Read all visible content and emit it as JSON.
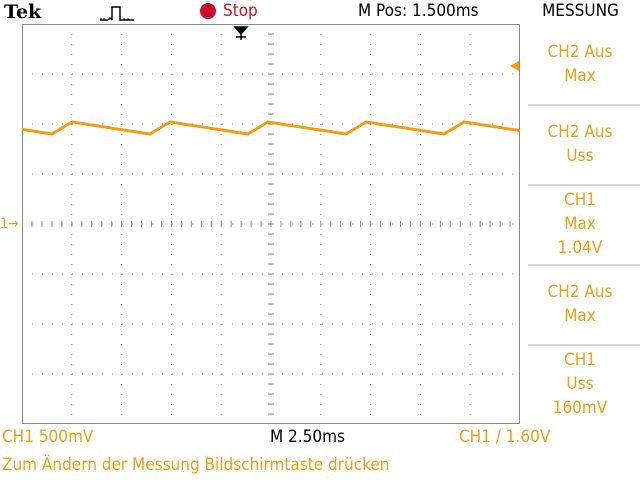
{
  "header": {
    "brand": "Tek",
    "trigger_state": "Stop",
    "horizontal_position": "M Pos: 1.500ms",
    "menu_title": "MESSUNG"
  },
  "measurements": [
    {
      "lines": [
        "CH2 Aus",
        "Max"
      ]
    },
    {
      "lines": [
        "CH2 Aus",
        "Uss"
      ]
    },
    {
      "lines": [
        "CH1",
        "Max",
        "1.04V"
      ]
    },
    {
      "lines": [
        "CH2 Aus",
        "Max"
      ]
    },
    {
      "lines": [
        "CH1",
        "Uss",
        "160mV"
      ]
    }
  ],
  "footer": {
    "ch1_scale": "CH1  500mV",
    "timebase": "M 2.50ms",
    "trigger_readout": "CH1 ∕ 1.60V",
    "help": "Zum Ändern der Messung Bildschirmtaste drücken"
  },
  "markers": {
    "ch1_ground": "1→"
  },
  "colors": {
    "trace": "#f39c12",
    "stop": "#c8102e",
    "grid": "#8a8a8a"
  },
  "icons": {
    "trigger_pulse": "pulse-icon",
    "trigger_position": "down-arrow-icon",
    "trigger_level": "left-arrow-icon"
  }
}
